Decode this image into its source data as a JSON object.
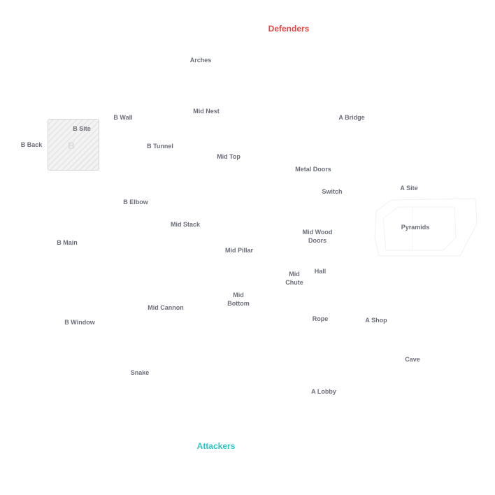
{
  "teams": {
    "defenders": {
      "label": "Defenders",
      "color": "#e04848"
    },
    "attackers": {
      "label": "Attackers",
      "color": "#2ec4c4"
    }
  },
  "sites": {
    "b": {
      "letter": "B"
    }
  },
  "callouts": {
    "arches": "Arches",
    "mid_nest": "Mid Nest",
    "b_wall": "B Wall",
    "a_bridge": "A Bridge",
    "b_site": "B Site",
    "b_back": "B Back",
    "b_tunnel": "B Tunnel",
    "mid_top": "Mid Top",
    "metal_doors": "Metal Doors",
    "switch": "Switch",
    "a_site": "A Site",
    "b_elbow": "B Elbow",
    "mid_stack": "Mid Stack",
    "pyramids": "Pyramids",
    "mid_wood_doors": "Mid Wood\nDoors",
    "b_main": "B Main",
    "mid_pillar": "Mid Pillar",
    "hall": "Hall",
    "mid_chute": "Mid\nChute",
    "mid_bottom": "Mid\nBottom",
    "mid_cannon": "Mid Cannon",
    "rope": "Rope",
    "a_shop": "A Shop",
    "b_window": "B Window",
    "cave": "Cave",
    "snake": "Snake",
    "a_lobby": "A Lobby"
  }
}
